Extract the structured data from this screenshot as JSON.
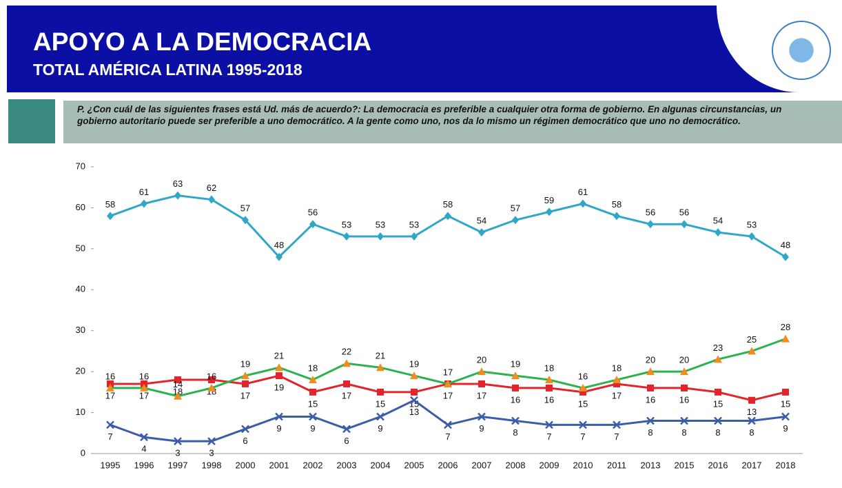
{
  "chart_data": {
    "type": "line",
    "title": "APOYO A LA DEMOCRACIA",
    "subtitle": "TOTAL AMÉRICA LATINA 1995-2018",
    "question": "P. ¿Con cuál de las siguientes frases está Ud. más de acuerdo?: La democracia es preferible a cualquier otra forma de gobierno. En algunas circunstancias, un gobierno autoritario puede ser preferible a uno democrático. A la gente como uno, nos da lo mismo un régimen democrático que uno no democrático.",
    "categories": [
      "1995",
      "1996",
      "1997",
      "1998",
      "2000",
      "2001",
      "2002",
      "2003",
      "2004",
      "2005",
      "2006",
      "2007",
      "2008",
      "2009",
      "2010",
      "2011",
      "2013",
      "2015",
      "2016",
      "2017",
      "2018"
    ],
    "ylim": [
      0,
      70
    ],
    "yticks": [
      0,
      10,
      20,
      30,
      40,
      50,
      60,
      70
    ],
    "series": [
      {
        "color": "#2ea7c9",
        "marker": "diamond",
        "values": [
          58,
          61,
          63,
          62,
          57,
          48,
          56,
          53,
          53,
          53,
          58,
          54,
          57,
          59,
          61,
          58,
          56,
          56,
          54,
          53,
          48
        ]
      },
      {
        "color": "#e3242b",
        "marker": "square",
        "values": [
          17,
          17,
          18,
          18,
          17,
          19,
          15,
          17,
          15,
          15,
          17,
          17,
          16,
          16,
          15,
          17,
          16,
          16,
          15,
          13,
          15
        ]
      },
      {
        "color": "#2bb24c",
        "marker_color": "#f28c1e",
        "marker": "triangle",
        "values": [
          16,
          16,
          14,
          16,
          19,
          21,
          18,
          22,
          21,
          19,
          17,
          20,
          19,
          18,
          16,
          18,
          20,
          20,
          23,
          25,
          28
        ]
      },
      {
        "color": "#3b5ca8",
        "marker": "x",
        "values": [
          7,
          4,
          3,
          3,
          6,
          9,
          9,
          6,
          9,
          13,
          7,
          9,
          8,
          7,
          7,
          7,
          8,
          8,
          8,
          8,
          9
        ]
      }
    ]
  }
}
